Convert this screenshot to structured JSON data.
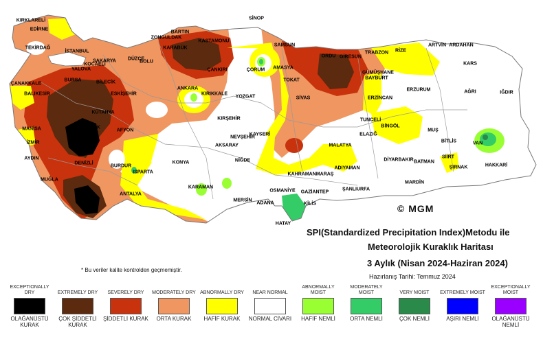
{
  "title": {
    "line1": "SPI(Standardized Precipitation Index)Metodu ile",
    "line2": "Meteorolojik Kuraklık Haritası",
    "line3": "3 Aylık (Nisan 2024-Haziran 2024)",
    "date": "Hazırlanış Tarihi: Temmuz 2024"
  },
  "note": "* Bu veriler kalite kontrolden geçmemiştir.",
  "logo": "© MGM",
  "colors": {
    "exceptionally_dry": "#000000",
    "extremely_dry": "#5c2a0f",
    "severely_dry": "#c8320c",
    "moderately_dry": "#ef9661",
    "abnormally_dry": "#ffff00",
    "near_normal": "#ffffff",
    "abnormally_moist": "#99ff33",
    "moderately_moist": "#33cc66",
    "very_moist": "#2a8a4a",
    "extremely_moist": "#0000ff",
    "exceptionally_moist": "#9900ff"
  },
  "legend": [
    {
      "en": "EXCEPTIONALLY DRY",
      "tr": "OLAĞANÜSTÜ KURAK",
      "color": "#000000"
    },
    {
      "en": "EXTREMELY DRY",
      "tr": "ÇOK ŞİDDETLİ KURAK",
      "color": "#5c2a0f"
    },
    {
      "en": "SEVERELY DRY",
      "tr": "ŞİDDETLİ KURAK",
      "color": "#c8320c"
    },
    {
      "en": "MODERATELY DRY",
      "tr": "ORTA KURAK",
      "color": "#ef9661"
    },
    {
      "en": "ABNORMALLY DRY",
      "tr": "HAFİF KURAK",
      "color": "#ffff00"
    },
    {
      "en": "NEAR NORMAL",
      "tr": "NORMAL CİVARI",
      "color": "#ffffff"
    },
    {
      "en": "ABNORMALLY MOIST",
      "tr": "HAFİF NEMLİ",
      "color": "#99ff33"
    },
    {
      "en": "MODERATELY MOIST",
      "tr": "ORTA NEMLİ",
      "color": "#33cc66"
    },
    {
      "en": "VERY MOIST",
      "tr": "ÇOK NEMLİ",
      "color": "#2a8a4a"
    },
    {
      "en": "EXTREMELY MOIST",
      "tr": "AŞIRI NEMLİ",
      "color": "#0000ff"
    },
    {
      "en": "EXCEPTIONALLY MOIST",
      "tr": "OLAĞANÜSTÜ NEMLİ",
      "color": "#9900ff"
    }
  ],
  "cities": [
    "KIRKLARELİ",
    "EDİRNE",
    "TEKİRDAĞ",
    "İSTANBUL",
    "ÇANAKKALE",
    "BALIKESİR",
    "MANİSA",
    "İZMİR",
    "AYDIN",
    "MUĞLA",
    "DENİZLİ",
    "UŞAK",
    "KÜTAHYA",
    "BURSA",
    "YALOVA",
    "KOCAELİ",
    "SAKARYA",
    "DÜZCE",
    "BOLU",
    "BİLECİK",
    "ESKİŞEHİR",
    "AFYON",
    "BURDUR",
    "ISPARTA",
    "ANTALYA",
    "BARTIN",
    "ZONGULDAK",
    "KARABÜK",
    "KASTAMONU",
    "ÇANKIRI",
    "ANKARA",
    "KIRIKKALE",
    "SİNOP",
    "SAMSUN",
    "ÇORUM",
    "AMASYA",
    "TOKAT",
    "ORDU",
    "GİRESUN",
    "TRABZON",
    "RİZE",
    "ARTVİN",
    "ARDAHAN",
    "KARS",
    "ERZURUM",
    "AĞRI",
    "IĞDIR",
    "GÜMÜŞHANE",
    "BAYBURT",
    "ERZİNCAN",
    "SİVAS",
    "YOZGAT",
    "KIRŞEHİR",
    "NEVŞEHİR",
    "KAYSERİ",
    "AKSARAY",
    "NİĞDE",
    "KONYA",
    "KARAMAN",
    "MERSİN",
    "ADANA",
    "OSMANİYE",
    "KAHRAMANMARAŞ",
    "MALATYA",
    "ELAZIĞ",
    "TUNCELİ",
    "BİNGÖL",
    "MUŞ",
    "BİTLİS",
    "VAN",
    "SİİRT",
    "BATMAN",
    "DİYARBAKIR",
    "ADIYAMAN",
    "GAZİANTEP",
    "KİLİS",
    "HATAY",
    "ŞANLIURFA",
    "MARDİN",
    "ŞIRNAK",
    "HAKKARİ"
  ]
}
